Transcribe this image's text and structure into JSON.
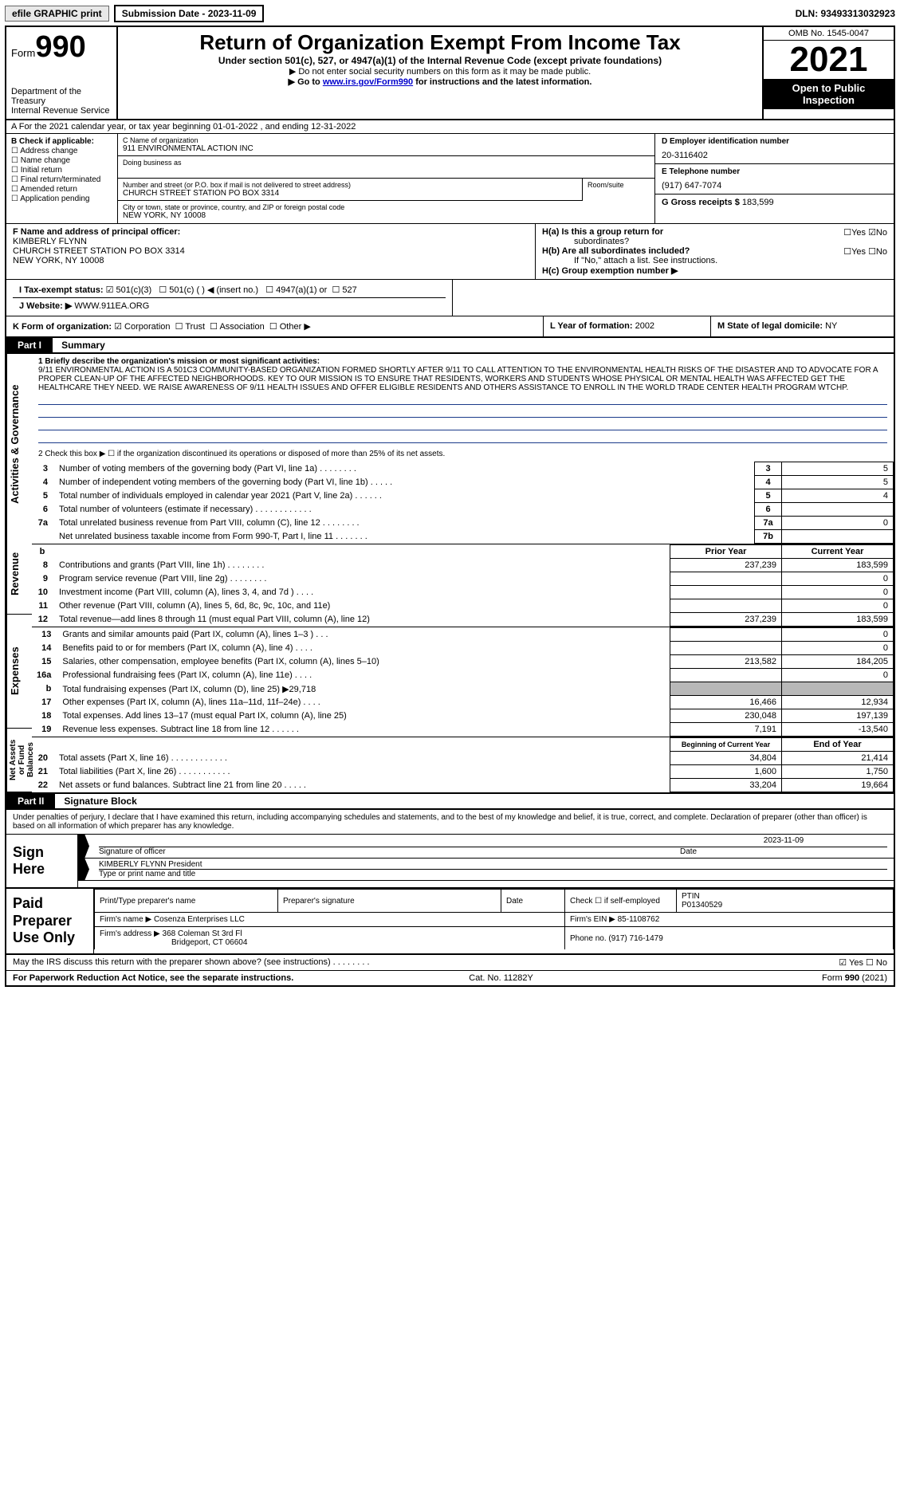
{
  "topbar": {
    "efile": "efile GRAPHIC print",
    "submission": "Submission Date - 2023-11-09",
    "dln": "DLN: 93493313032923"
  },
  "header": {
    "form_prefix": "Form",
    "form_number": "990",
    "dept": "Department of the Treasury",
    "irs": "Internal Revenue Service",
    "title": "Return of Organization Exempt From Income Tax",
    "subtitle": "Under section 501(c), 527, or 4947(a)(1) of the Internal Revenue Code (except private foundations)",
    "note1": "▶ Do not enter social security numbers on this form as it may be made public.",
    "note2_pre": "▶ Go to ",
    "note2_link": "www.irs.gov/Form990",
    "note2_post": " for instructions and the latest information.",
    "omb": "OMB No. 1545-0047",
    "year": "2021",
    "open": "Open to Public Inspection"
  },
  "row_a": "A For the 2021 calendar year, or tax year beginning 01-01-2022   , and ending 12-31-2022",
  "b": {
    "header": "B Check if applicable:",
    "opts": [
      "Address change",
      "Name change",
      "Initial return",
      "Final return/terminated",
      "Amended return",
      "Application pending"
    ]
  },
  "c": {
    "name_lbl": "C Name of organization",
    "name": "911 ENVIRONMENTAL ACTION INC",
    "dba_lbl": "Doing business as",
    "dba": "",
    "addr_lbl": "Number and street (or P.O. box if mail is not delivered to street address)",
    "addr": "CHURCH STREET STATION PO BOX 3314",
    "room_lbl": "Room/suite",
    "city_lbl": "City or town, state or province, country, and ZIP or foreign postal code",
    "city": "NEW YORK, NY  10008"
  },
  "d": {
    "lbl": "D Employer identification number",
    "val": "20-3116402"
  },
  "e": {
    "lbl": "E Telephone number",
    "val": "(917) 647-7074"
  },
  "g": {
    "lbl": "G Gross receipts $",
    "val": "183,599"
  },
  "f": {
    "lbl": "F  Name and address of principal officer:",
    "name": "KIMBERLY FLYNN",
    "addr1": "CHURCH STREET STATION PO BOX 3314",
    "addr2": "NEW YORK, NY  10008"
  },
  "h": {
    "a_lbl": "H(a)  Is this a group return for",
    "a_sub": "subordinates?",
    "b_lbl": "H(b)  Are all subordinates included?",
    "b_note": "If \"No,\" attach a list. See instructions.",
    "c_lbl": "H(c)  Group exemption number ▶"
  },
  "i": {
    "lbl": "I    Tax-exempt status:",
    "opts": [
      "501(c)(3)",
      "501(c) (  ) ◀ (insert no.)",
      "4947(a)(1) or",
      "527"
    ]
  },
  "j": {
    "lbl": "J   Website: ▶",
    "val": " WWW.911EA.ORG"
  },
  "k": {
    "lbl": "K Form of organization:",
    "opts": [
      "Corporation",
      "Trust",
      "Association",
      "Other ▶"
    ]
  },
  "l": {
    "lbl": "L Year of formation:",
    "val": "2002"
  },
  "m": {
    "lbl": "M State of legal domicile:",
    "val": "NY"
  },
  "part1": {
    "hdr": "Part I",
    "title": "Summary",
    "sections": {
      "gov": "Activities & Governance",
      "rev": "Revenue",
      "exp": "Expenses",
      "net": "Net Assets or Fund Balances"
    },
    "line1_lbl": "1  Briefly describe the organization's mission or most significant activities:",
    "mission": "9/11 ENVIRONMENTAL ACTION IS A 501C3 COMMUNITY-BASED ORGANIZATION FORMED SHORTLY AFTER 9/11 TO CALL ATTENTION TO THE ENVIRONMENTAL HEALTH RISKS OF THE DISASTER AND TO ADVOCATE FOR A PROPER CLEAN-UP OF THE AFFECTED NEIGHBORHOODS. KEY TO OUR MISSION IS TO ENSURE THAT RESIDENTS, WORKERS AND STUDENTS WHOSE PHYSICAL OR MENTAL HEALTH WAS AFFECTED GET THE HEALTHCARE THEY NEED. WE RAISE AWARENESS OF 9/11 HEALTH ISSUES AND OFFER ELIGIBLE RESIDENTS AND OTHERS ASSISTANCE TO ENROLL IN THE WORLD TRADE CENTER HEALTH PROGRAM WTCHP.",
    "line2": "2  Check this box ▶ ☐  if the organization discontinued its operations or disposed of more than 25% of its net assets.",
    "rows_gov": [
      {
        "n": "3",
        "d": "Number of voting members of the governing body (Part VI, line 1a)   .    .    .    .    .    .    .    .",
        "box": "3",
        "v": "5"
      },
      {
        "n": "4",
        "d": "Number of independent voting members of the governing body (Part VI, line 1b)   .    .    .    .    .",
        "box": "4",
        "v": "5"
      },
      {
        "n": "5",
        "d": "Total number of individuals employed in calendar year 2021 (Part V, line 2a)    .    .    .    .    .    .",
        "box": "5",
        "v": "4"
      },
      {
        "n": "6",
        "d": "Total number of volunteers (estimate if necessary)    .    .    .    .    .    .    .    .    .    .    .    .",
        "box": "6",
        "v": ""
      },
      {
        "n": "7a",
        "d": "Total unrelated business revenue from Part VIII, column (C), line 12   .    .    .    .    .    .    .    .",
        "box": "7a",
        "v": "0"
      },
      {
        "n": "",
        "d": "Net unrelated business taxable income from Form 990-T, Part I, line 11    .    .    .    .    .    .    .",
        "box": "7b",
        "v": ""
      }
    ],
    "col_hdrs": {
      "b": "b",
      "prior": "Prior Year",
      "current": "Current Year"
    },
    "rows_rev": [
      {
        "n": "8",
        "d": "Contributions and grants (Part VIII, line 1h)   .    .    .    .    .    .    .    .",
        "p": "237,239",
        "c": "183,599"
      },
      {
        "n": "9",
        "d": "Program service revenue (Part VIII, line 2g)   .    .    .    .    .    .    .    .",
        "p": "",
        "c": "0"
      },
      {
        "n": "10",
        "d": "Investment income (Part VIII, column (A), lines 3, 4, and 7d )   .    .    .    .",
        "p": "",
        "c": "0"
      },
      {
        "n": "11",
        "d": "Other revenue (Part VIII, column (A), lines 5, 6d, 8c, 9c, 10c, and 11e)",
        "p": "",
        "c": "0"
      },
      {
        "n": "12",
        "d": "Total revenue—add lines 8 through 11 (must equal Part VIII, column (A), line 12)",
        "p": "237,239",
        "c": "183,599"
      }
    ],
    "rows_exp": [
      {
        "n": "13",
        "d": "Grants and similar amounts paid (Part IX, column (A), lines 1–3 )   .    .    .",
        "p": "",
        "c": "0"
      },
      {
        "n": "14",
        "d": "Benefits paid to or for members (Part IX, column (A), line 4)    .    .    .    .",
        "p": "",
        "c": "0"
      },
      {
        "n": "15",
        "d": "Salaries, other compensation, employee benefits (Part IX, column (A), lines 5–10)",
        "p": "213,582",
        "c": "184,205"
      },
      {
        "n": "16a",
        "d": "Professional fundraising fees (Part IX, column (A), line 11e)   .    .    .    .",
        "p": "",
        "c": "0"
      },
      {
        "n": "b",
        "d": "Total fundraising expenses (Part IX, column (D), line 25) ▶29,718",
        "p": "gray",
        "c": "gray"
      },
      {
        "n": "17",
        "d": "Other expenses (Part IX, column (A), lines 11a–11d, 11f–24e)    .    .    .    .",
        "p": "16,466",
        "c": "12,934"
      },
      {
        "n": "18",
        "d": "Total expenses. Add lines 13–17 (must equal Part IX, column (A), line 25)",
        "p": "230,048",
        "c": "197,139"
      },
      {
        "n": "19",
        "d": "Revenue less expenses. Subtract line 18 from line 12   .    .    .    .    .    .",
        "p": "7,191",
        "c": "-13,540"
      }
    ],
    "net_hdrs": {
      "b": "Beginning of Current Year",
      "e": "End of Year"
    },
    "rows_net": [
      {
        "n": "20",
        "d": "Total assets (Part X, line 16)   .    .    .    .    .    .    .    .    .    .    .    .",
        "p": "34,804",
        "c": "21,414"
      },
      {
        "n": "21",
        "d": "Total liabilities (Part X, line 26)    .    .    .    .    .    .    .    .    .    .    .",
        "p": "1,600",
        "c": "1,750"
      },
      {
        "n": "22",
        "d": "Net assets or fund balances. Subtract line 21 from line 20    .    .    .    .    .",
        "p": "33,204",
        "c": "19,664"
      }
    ]
  },
  "part2": {
    "hdr": "Part II",
    "title": "Signature Block",
    "decl": "Under penalties of perjury, I declare that I have examined this return, including accompanying schedules and statements, and to the best of my knowledge and belief, it is true, correct, and complete. Declaration of preparer (other than officer) is based on all information of which preparer has any knowledge.",
    "sign_here": "Sign Here",
    "sig_officer": "Signature of officer",
    "sig_date": "2023-11-09",
    "date_lbl": "Date",
    "officer_name": "KIMBERLY FLYNN  President",
    "type_lbl": "Type or print name and title",
    "paid": "Paid Preparer Use Only",
    "prep_name_lbl": "Print/Type preparer's name",
    "prep_sig_lbl": "Preparer's signature",
    "prep_date_lbl": "Date",
    "check_lbl": "Check ☐ if self-employed",
    "ptin_lbl": "PTIN",
    "ptin": "P01340529",
    "firm_name_lbl": "Firm's name    ▶",
    "firm_name": "Cosenza Enterprises LLC",
    "firm_ein_lbl": "Firm's EIN ▶",
    "firm_ein": "85-1108762",
    "firm_addr_lbl": "Firm's address ▶",
    "firm_addr": "368 Coleman St 3rd Fl",
    "firm_city": "Bridgeport, CT  06604",
    "phone_lbl": "Phone no.",
    "phone": "(917) 716-1479"
  },
  "footer": {
    "discuss": "May the IRS discuss this return with the preparer shown above? (see instructions)    .    .    .    .    .    .    .    .",
    "yes": "☑ Yes  ☐ No",
    "pra": "For Paperwork Reduction Act Notice, see the separate instructions.",
    "cat": "Cat. No. 11282Y",
    "form": "Form 990 (2021)"
  }
}
